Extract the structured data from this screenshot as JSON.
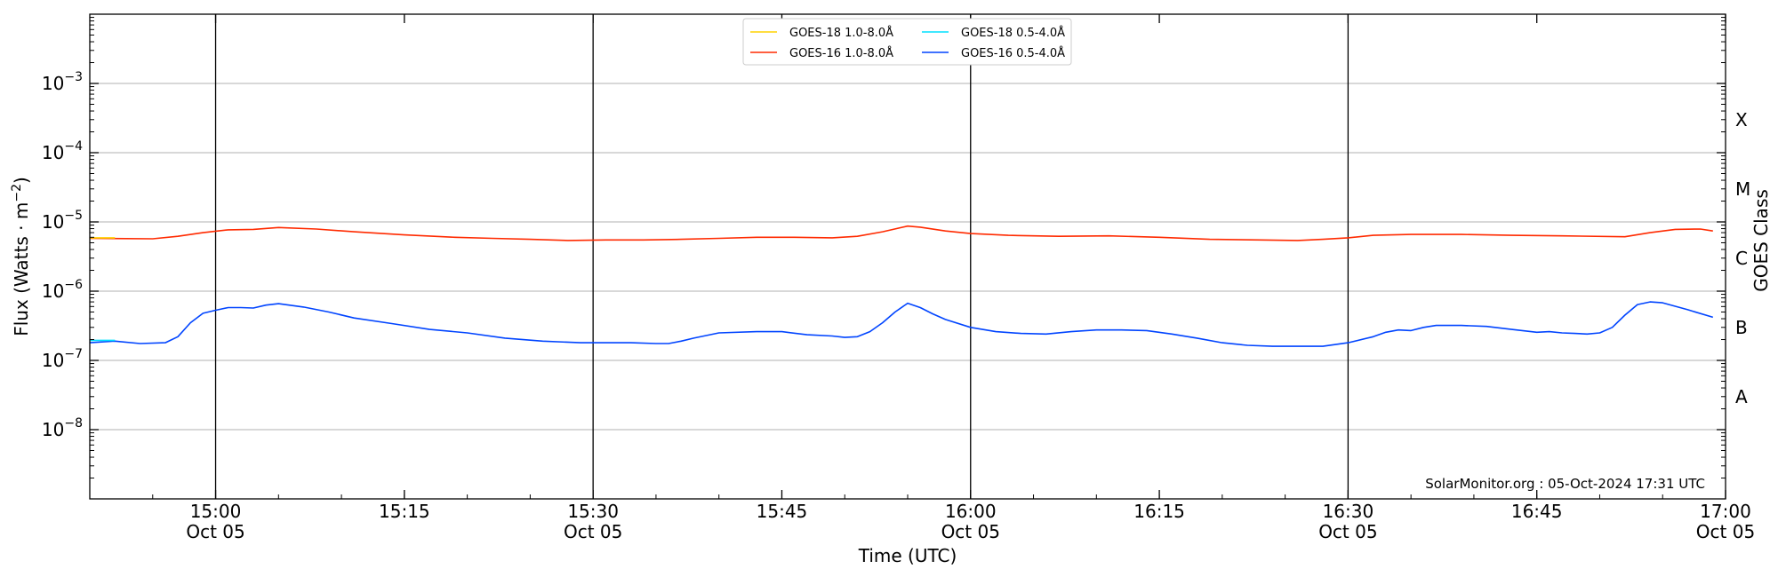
{
  "chart_data": {
    "type": "line",
    "xlabel": "Time (UTC)",
    "ylabel": "Flux (Watts · m",
    "ylabel_exp": "−2",
    "ylabel_close": ")",
    "right_label": "GOES Class",
    "credit": "SolarMonitor.org : 05-Oct-2024 17:31 UTC",
    "x_range_minutes": [
      -10,
      120
    ],
    "x_range_labels": [
      "14:50",
      "17:00"
    ],
    "ylim": [
      1e-09,
      0.01
    ],
    "y_scale": "log",
    "y_ticks": [
      {
        "value": 1e-08,
        "base": "10",
        "exp": "−8"
      },
      {
        "value": 1e-07,
        "base": "10",
        "exp": "−7"
      },
      {
        "value": 1e-06,
        "base": "10",
        "exp": "−6"
      },
      {
        "value": 1e-05,
        "base": "10",
        "exp": "−5"
      },
      {
        "value": 0.0001,
        "base": "10",
        "exp": "−4"
      },
      {
        "value": 0.001,
        "base": "10",
        "exp": "−3"
      }
    ],
    "x_ticks": [
      {
        "minutes": 0,
        "label": "15:00",
        "date": "Oct 05"
      },
      {
        "minutes": 15,
        "label": "15:15",
        "date": ""
      },
      {
        "minutes": 30,
        "label": "15:30",
        "date": "Oct 05"
      },
      {
        "minutes": 45,
        "label": "15:45",
        "date": ""
      },
      {
        "minutes": 60,
        "label": "16:00",
        "date": "Oct 05"
      },
      {
        "minutes": 75,
        "label": "16:15",
        "date": ""
      },
      {
        "minutes": 90,
        "label": "16:30",
        "date": "Oct 05"
      },
      {
        "minutes": 105,
        "label": "16:45",
        "date": ""
      },
      {
        "minutes": 120,
        "label": "17:00",
        "date": "Oct 05"
      }
    ],
    "vertical_lines_minutes": [
      0,
      30,
      60,
      90
    ],
    "goes_classes": [
      {
        "label": "A",
        "flux": 3e-08
      },
      {
        "label": "B",
        "flux": 3e-07
      },
      {
        "label": "C",
        "flux": 3e-06
      },
      {
        "label": "M",
        "flux": 3e-05
      },
      {
        "label": "X",
        "flux": 0.0003
      }
    ],
    "grid": "horizontal",
    "legend_position": "top-center",
    "series": [
      {
        "name": "GOES-16 1.0-8.0Å",
        "color": "#ff2a00",
        "x": [
          -10,
          -5,
          -3,
          -1,
          1,
          3,
          5,
          8,
          11,
          15,
          19,
          22,
          25,
          28,
          31,
          34,
          37,
          40,
          43,
          46,
          49,
          51,
          53,
          55,
          56,
          58,
          60,
          63,
          67,
          71,
          75,
          79,
          83,
          86,
          88,
          90,
          92,
          95,
          99,
          103,
          107,
          112,
          114,
          116,
          118,
          119
        ],
        "y": [
          5.8e-06,
          5.7e-06,
          6.2e-06,
          7e-06,
          7.7e-06,
          7.8e-06,
          8.3e-06,
          7.9e-06,
          7.2e-06,
          6.5e-06,
          6e-06,
          5.8e-06,
          5.6e-06,
          5.4e-06,
          5.5e-06,
          5.5e-06,
          5.6e-06,
          5.8e-06,
          6e-06,
          6e-06,
          5.9e-06,
          6.2e-06,
          7.2e-06,
          8.7e-06,
          8.4e-06,
          7.4e-06,
          6.8e-06,
          6.4e-06,
          6.2e-06,
          6.3e-06,
          6e-06,
          5.6e-06,
          5.5e-06,
          5.4e-06,
          5.6e-06,
          5.9e-06,
          6.4e-06,
          6.6e-06,
          6.6e-06,
          6.4e-06,
          6.3e-06,
          6.1e-06,
          7e-06,
          7.8e-06,
          7.9e-06,
          7.4e-06
        ]
      },
      {
        "name": "GOES-16 0.5-4.0Å",
        "color": "#0044ff",
        "x": [
          -10,
          -8,
          -6,
          -4,
          -3,
          -2,
          -1,
          0,
          1,
          2,
          3,
          4,
          5,
          7,
          9,
          11,
          14,
          17,
          20,
          23,
          26,
          29,
          31,
          33,
          35,
          36,
          37,
          38,
          40,
          43,
          45,
          47,
          49,
          50,
          51,
          52,
          53,
          54,
          55,
          56,
          57,
          58,
          60,
          62,
          64,
          66,
          68,
          70,
          72,
          74,
          76,
          78,
          80,
          82,
          84,
          86,
          88,
          90,
          92,
          93,
          94,
          95,
          96,
          97,
          99,
          101,
          103,
          105,
          106,
          107,
          108,
          109,
          110,
          111,
          112,
          113,
          114,
          115,
          117,
          119
        ],
        "y": [
          1.8e-07,
          1.9e-07,
          1.75e-07,
          1.8e-07,
          2.2e-07,
          3.5e-07,
          4.8e-07,
          5.3e-07,
          5.8e-07,
          5.8e-07,
          5.7e-07,
          6.3e-07,
          6.6e-07,
          5.9e-07,
          5e-07,
          4.1e-07,
          3.4e-07,
          2.8e-07,
          2.5e-07,
          2.1e-07,
          1.9e-07,
          1.8e-07,
          1.8e-07,
          1.8e-07,
          1.75e-07,
          1.75e-07,
          1.9e-07,
          2.1e-07,
          2.5e-07,
          2.6e-07,
          2.6e-07,
          2.35e-07,
          2.25e-07,
          2.15e-07,
          2.2e-07,
          2.6e-07,
          3.5e-07,
          5e-07,
          6.7e-07,
          5.8e-07,
          4.7e-07,
          3.9e-07,
          3e-07,
          2.6e-07,
          2.45e-07,
          2.4e-07,
          2.6e-07,
          2.75e-07,
          2.75e-07,
          2.7e-07,
          2.4e-07,
          2.1e-07,
          1.8e-07,
          1.65e-07,
          1.6e-07,
          1.6e-07,
          1.6e-07,
          1.8e-07,
          2.2e-07,
          2.55e-07,
          2.75e-07,
          2.7e-07,
          3e-07,
          3.2e-07,
          3.2e-07,
          3.1e-07,
          2.8e-07,
          2.55e-07,
          2.6e-07,
          2.5e-07,
          2.45e-07,
          2.4e-07,
          2.5e-07,
          3e-07,
          4.5e-07,
          6.4e-07,
          7e-07,
          6.8e-07,
          5.4e-07,
          4.2e-07
        ]
      },
      {
        "name": "GOES-18 1.0-8.0Å",
        "color": "#ffd200",
        "x": [
          -10,
          -8
        ],
        "y": [
          5.9e-06,
          5.9e-06
        ]
      },
      {
        "name": "GOES-18 0.5-4.0Å",
        "color": "#00e0ff",
        "x": [
          -10,
          -8
        ],
        "y": [
          1.95e-07,
          1.95e-07
        ]
      }
    ],
    "legend_order": [
      "GOES-18 1.0-8.0Å",
      "GOES-18 0.5-4.0Å",
      "GOES-16 1.0-8.0Å",
      "GOES-16 0.5-4.0Å"
    ]
  }
}
